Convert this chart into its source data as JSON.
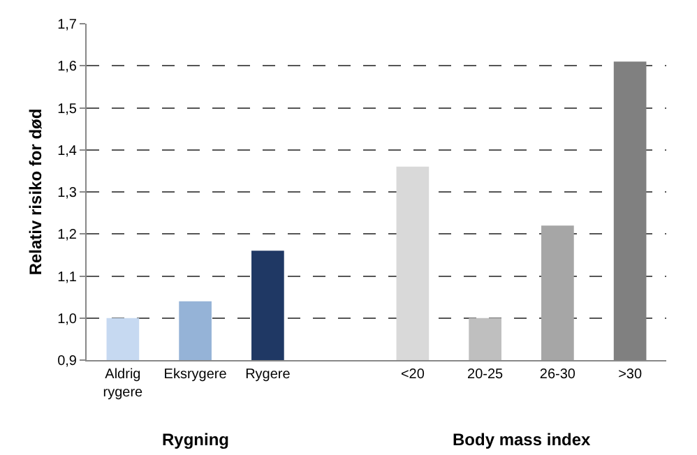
{
  "chart_data": {
    "type": "bar",
    "ylabel": "Relativ risiko for død",
    "categories": [
      "Aldrig\nrygere",
      "Eksrygere",
      "Rygere",
      null,
      "<20",
      "20-25",
      "26-30",
      ">30"
    ],
    "values": [
      1.0,
      1.04,
      1.16,
      null,
      1.36,
      1.0,
      1.22,
      1.61
    ],
    "colors": [
      "#c6d9f1",
      "#95b3d7",
      "#1f3864",
      "#ffffff",
      "#d9d9d9",
      "#bfbfbf",
      "#a6a6a6",
      "#808080"
    ],
    "ylim": [
      0.9,
      1.7
    ],
    "yticks": [
      {
        "value": 0.9,
        "label": "0,9"
      },
      {
        "value": 1.0,
        "label": "1,0"
      },
      {
        "value": 1.1,
        "label": "1,1"
      },
      {
        "value": 1.2,
        "label": "1,2"
      },
      {
        "value": 1.3,
        "label": "1,3"
      },
      {
        "value": 1.4,
        "label": "1,4"
      },
      {
        "value": 1.5,
        "label": "1,5"
      },
      {
        "value": 1.6,
        "label": "1,6"
      },
      {
        "value": 1.7,
        "label": "1,7"
      }
    ],
    "grid": "y",
    "line_style": "dashed",
    "annotations": [
      "Rygning",
      "Body mass index"
    ]
  }
}
